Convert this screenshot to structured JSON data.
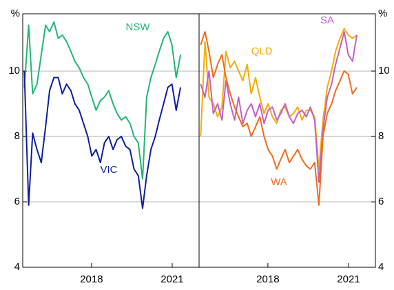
{
  "chart_data": [
    {
      "type": "line",
      "ylabel": "%",
      "x": [
        2015.5,
        2015.66,
        2015.81,
        2015.97,
        2016.13,
        2016.29,
        2016.44,
        2016.6,
        2016.76,
        2016.91,
        2017.07,
        2017.23,
        2017.38,
        2017.54,
        2017.7,
        2017.86,
        2018.01,
        2018.17,
        2018.33,
        2018.48,
        2018.64,
        2018.8,
        2018.95,
        2019.11,
        2019.27,
        2019.43,
        2019.58,
        2019.74,
        2019.9,
        2020.05,
        2020.21,
        2020.37,
        2020.52,
        2020.68,
        2020.84,
        2020.99,
        2021.15,
        2021.31
      ],
      "series": [
        {
          "name": "NSW",
          "color": "#22b573",
          "values": [
            9.5,
            11.4,
            9.3,
            9.6,
            10.5,
            11.4,
            11.2,
            11.5,
            11.0,
            11.1,
            10.9,
            10.6,
            10.3,
            10.1,
            9.8,
            9.6,
            9.2,
            8.8,
            9.1,
            9.2,
            9.4,
            9.0,
            8.7,
            8.5,
            8.6,
            8.4,
            8.0,
            7.8,
            6.7,
            9.2,
            9.8,
            10.2,
            10.6,
            11.0,
            11.2,
            10.8,
            9.8,
            10.5
          ]
        },
        {
          "name": "VIC",
          "color": "#0a1e9e",
          "values": [
            10.0,
            5.9,
            8.1,
            7.6,
            7.2,
            8.3,
            9.4,
            9.8,
            9.8,
            9.3,
            9.6,
            9.4,
            9.0,
            8.8,
            8.4,
            8.0,
            7.4,
            7.6,
            7.2,
            7.8,
            8.0,
            7.6,
            7.9,
            8.0,
            7.7,
            7.6,
            7.0,
            6.8,
            5.8,
            6.8,
            7.6,
            8.0,
            8.5,
            9.0,
            9.5,
            9.6,
            8.8,
            9.5
          ]
        }
      ],
      "xlim": [
        2015.44,
        2022
      ],
      "xticks": [
        2018,
        2021
      ],
      "ylim": [
        4,
        11.75
      ],
      "yticks": [
        4,
        6,
        8,
        10
      ],
      "grid": true
    },
    {
      "type": "line",
      "ylabel": "%",
      "x": [
        2015.5,
        2015.66,
        2015.81,
        2015.97,
        2016.13,
        2016.29,
        2016.44,
        2016.6,
        2016.76,
        2016.91,
        2017.07,
        2017.23,
        2017.38,
        2017.54,
        2017.7,
        2017.86,
        2018.01,
        2018.17,
        2018.33,
        2018.48,
        2018.64,
        2018.8,
        2018.95,
        2019.11,
        2019.27,
        2019.43,
        2019.58,
        2019.74,
        2019.9,
        2020.05,
        2020.21,
        2020.37,
        2020.52,
        2020.68,
        2020.84,
        2020.99,
        2021.15,
        2021.31
      ],
      "series": [
        {
          "name": "QLD",
          "color": "#f5ac00",
          "values": [
            8.0,
            10.9,
            9.2,
            9.0,
            8.6,
            8.9,
            10.6,
            10.1,
            10.3,
            10.0,
            9.7,
            10.2,
            9.3,
            9.8,
            9.2,
            8.7,
            9.0,
            8.6,
            8.4,
            8.8,
            8.9,
            8.6,
            8.7,
            8.9,
            8.5,
            8.8,
            8.8,
            8.6,
            7.0,
            8.5,
            9.5,
            10.0,
            10.6,
            11.0,
            11.3,
            11.1,
            11.0,
            11.1
          ]
        },
        {
          "name": "SA",
          "color": "#c060c8",
          "values": [
            9.6,
            9.2,
            10.0,
            8.7,
            9.0,
            8.5,
            9.7,
            9.0,
            8.5,
            9.2,
            8.4,
            8.8,
            9.0,
            8.6,
            9.0,
            8.4,
            8.8,
            8.9,
            8.5,
            8.7,
            9.0,
            8.6,
            8.4,
            8.7,
            8.8,
            8.6,
            8.9,
            8.5,
            6.6,
            8.2,
            9.2,
            9.6,
            10.2,
            10.7,
            11.2,
            10.5,
            10.3,
            11.1
          ]
        },
        {
          "name": "WA",
          "color": "#f26b1d",
          "values": [
            10.8,
            11.2,
            10.6,
            9.8,
            10.2,
            10.5,
            9.8,
            9.3,
            8.9,
            8.6,
            8.3,
            8.4,
            8.0,
            8.3,
            8.6,
            8.0,
            7.6,
            7.4,
            7.0,
            7.3,
            7.6,
            7.2,
            7.4,
            7.6,
            7.3,
            7.1,
            7.0,
            7.2,
            5.9,
            8.0,
            8.7,
            9.0,
            9.4,
            9.7,
            10.0,
            9.9,
            9.3,
            9.5
          ]
        }
      ],
      "xlim": [
        2015.44,
        2022
      ],
      "xticks": [
        2018,
        2021
      ],
      "ylim": [
        4,
        11.75
      ],
      "yticks": [
        4,
        6,
        8,
        10
      ],
      "grid": true
    }
  ]
}
